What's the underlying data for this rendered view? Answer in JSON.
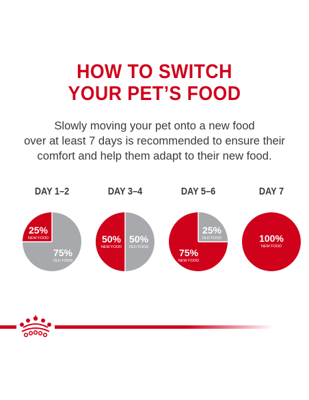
{
  "title_line1": "HOW TO SWITCH",
  "title_line2": "YOUR PET’S FOOD",
  "subtitle_line1": "Slowly moving your pet onto a new food",
  "subtitle_line2": "over at least 7 days is recommended to ensure their",
  "subtitle_line3": "comfort and help them adapt to their new food.",
  "colors": {
    "brand_red": "#d0021b",
    "old_food_gray": "#a7a9ac",
    "text": "#3a3a3a"
  },
  "stages": [
    {
      "day": "DAY 1–2",
      "new_pct": "25%",
      "new_label": "NEW FOOD",
      "old_pct": "75%",
      "old_label": "OLD FOOD",
      "new_fraction": 0.25
    },
    {
      "day": "DAY 3–4",
      "new_pct": "50%",
      "new_label": "NEW FOOD",
      "old_pct": "50%",
      "old_label": "OLD FOOD",
      "new_fraction": 0.5
    },
    {
      "day": "DAY 5–6",
      "new_pct": "75%",
      "new_label": "NEW FOOD",
      "old_pct": "25%",
      "old_label": "OLD FOOD",
      "new_fraction": 0.75
    },
    {
      "day": "DAY 7",
      "new_pct": "100%",
      "new_label": "NEW FOOD",
      "new_fraction": 1.0
    }
  ],
  "logo_icon": "royal-canin-crown-icon"
}
